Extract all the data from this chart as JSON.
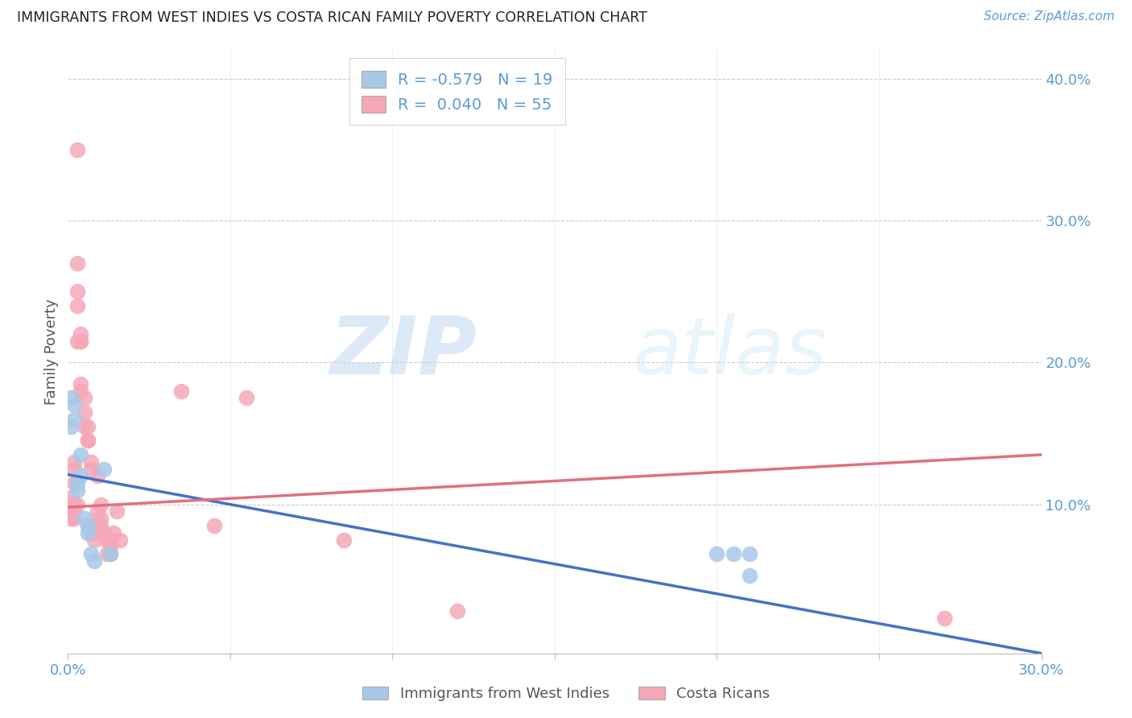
{
  "title": "IMMIGRANTS FROM WEST INDIES VS COSTA RICAN FAMILY POVERTY CORRELATION CHART",
  "source": "Source: ZipAtlas.com",
  "ylabel": "Family Poverty",
  "watermark": "ZIPatlas",
  "xlim": [
    0.0,
    0.3
  ],
  "ylim": [
    -0.005,
    0.42
  ],
  "blue_color": "#a8c8e8",
  "pink_color": "#f4a8b8",
  "blue_line_color": "#4472c4",
  "pink_line_color": "#e07080",
  "axis_label_color": "#5b9bd5",
  "blue_line_x": [
    0.0,
    0.3
  ],
  "blue_line_y": [
    0.121,
    -0.005
  ],
  "pink_line_x": [
    0.0,
    0.3
  ],
  "pink_line_y": [
    0.098,
    0.135
  ],
  "blue_points_x": [
    0.001,
    0.001,
    0.002,
    0.002,
    0.003,
    0.003,
    0.004,
    0.004,
    0.005,
    0.006,
    0.006,
    0.007,
    0.008,
    0.011,
    0.013,
    0.2,
    0.205,
    0.21,
    0.21
  ],
  "blue_points_y": [
    0.155,
    0.175,
    0.16,
    0.17,
    0.115,
    0.11,
    0.12,
    0.135,
    0.09,
    0.08,
    0.085,
    0.065,
    0.06,
    0.125,
    0.065,
    0.065,
    0.065,
    0.05,
    0.065
  ],
  "pink_points_x": [
    0.001,
    0.001,
    0.001,
    0.001,
    0.002,
    0.002,
    0.002,
    0.002,
    0.002,
    0.002,
    0.003,
    0.003,
    0.003,
    0.003,
    0.003,
    0.003,
    0.004,
    0.004,
    0.004,
    0.004,
    0.004,
    0.005,
    0.005,
    0.005,
    0.006,
    0.006,
    0.006,
    0.006,
    0.007,
    0.007,
    0.007,
    0.007,
    0.008,
    0.008,
    0.008,
    0.009,
    0.009,
    0.01,
    0.01,
    0.01,
    0.011,
    0.012,
    0.012,
    0.013,
    0.013,
    0.013,
    0.014,
    0.015,
    0.016,
    0.035,
    0.045,
    0.055,
    0.085,
    0.12,
    0.27
  ],
  "pink_points_y": [
    0.105,
    0.1,
    0.095,
    0.09,
    0.13,
    0.125,
    0.115,
    0.1,
    0.095,
    0.09,
    0.35,
    0.27,
    0.25,
    0.24,
    0.215,
    0.1,
    0.22,
    0.215,
    0.215,
    0.185,
    0.18,
    0.175,
    0.165,
    0.155,
    0.155,
    0.145,
    0.145,
    0.085,
    0.13,
    0.125,
    0.085,
    0.08,
    0.085,
    0.085,
    0.075,
    0.12,
    0.095,
    0.1,
    0.09,
    0.085,
    0.08,
    0.075,
    0.065,
    0.075,
    0.07,
    0.065,
    0.08,
    0.095,
    0.075,
    0.18,
    0.085,
    0.175,
    0.075,
    0.025,
    0.02
  ]
}
